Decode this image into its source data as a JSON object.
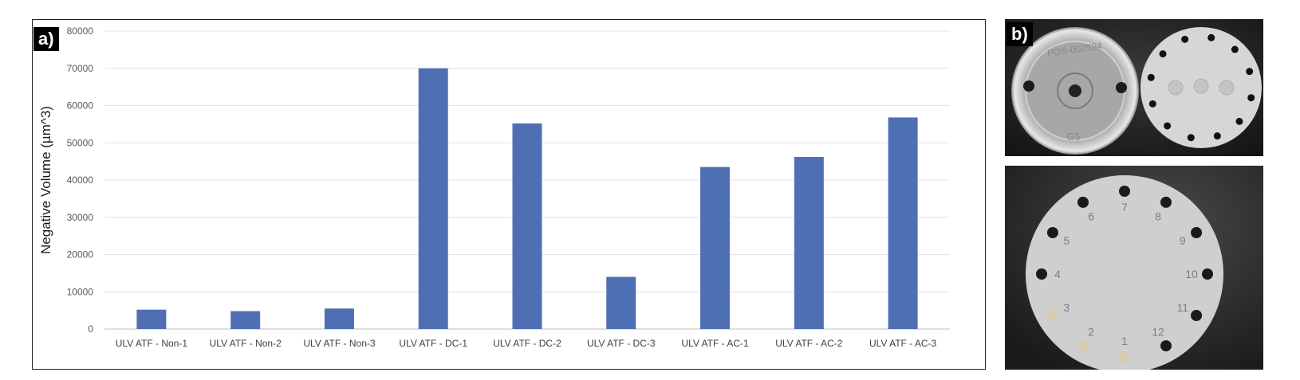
{
  "panels": {
    "a_label": "a)",
    "b_label": "b)"
  },
  "chart_data": {
    "type": "bar",
    "title": "",
    "xlabel": "",
    "ylabel": "Negative Volume (µm^3)",
    "ylim": [
      0,
      80000
    ],
    "yticks": [
      0,
      10000,
      20000,
      30000,
      40000,
      50000,
      60000,
      70000,
      80000
    ],
    "grid": true,
    "bar_color": "#4f6fb5",
    "categories": [
      "ULV ATF - Non-1",
      "ULV ATF - Non-2",
      "ULV ATF - Non-3",
      "ULV ATF - DC-1",
      "ULV ATF - DC-2",
      "ULV ATF - DC-3",
      "ULV ATF - AC-1",
      "ULV ATF - AC-2",
      "ULV ATF - AC-3"
    ],
    "values": [
      5200,
      4800,
      5500,
      70000,
      55200,
      14000,
      43500,
      46200,
      56800
    ]
  },
  "photos": {
    "top_left_disc_text": "POS-002594",
    "top_left_disc_code": "G5",
    "bottom_disc_numbers": [
      "1",
      "2",
      "3",
      "4",
      "5",
      "6",
      "7",
      "8",
      "9",
      "10",
      "11",
      "12"
    ]
  }
}
